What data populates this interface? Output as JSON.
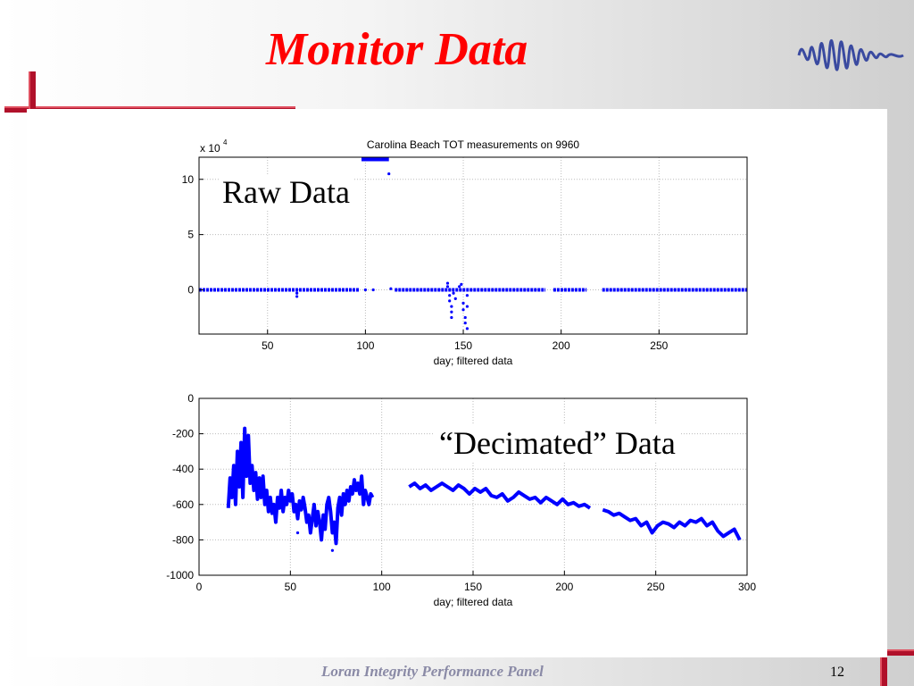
{
  "slide": {
    "title": "Monitor Data",
    "footer": "Loran Integrity Performance Panel",
    "page_number": "12"
  },
  "colors": {
    "title": "#ff0000",
    "data": "#0000ff",
    "crossbar": "#b0102a",
    "footer": "#8a8aa6"
  },
  "icons": [
    "crossbar-top-left-icon",
    "crossbar-bottom-right-icon",
    "waveform-logo-icon"
  ],
  "chart_data": [
    {
      "type": "scatter",
      "title": "Carolina Beach TOT measurements on 9960",
      "xlabel": "day; filtered data",
      "ylabel": "",
      "y_exponent_label": "x 10",
      "y_exponent": "4",
      "overlay_label": "Raw Data",
      "xlim": [
        15,
        295
      ],
      "ylim": [
        -4,
        12
      ],
      "xticks": [
        50,
        100,
        150,
        200,
        250
      ],
      "yticks": [
        0,
        5,
        10
      ],
      "grid": true,
      "segments": [
        {
          "x_start": 15,
          "x_end": 97,
          "y": 0
        },
        {
          "x_start": 115,
          "x_end": 192,
          "y": 0
        },
        {
          "x_start": 196,
          "x_end": 213,
          "y": 0
        },
        {
          "x_start": 221,
          "x_end": 295,
          "y": 0
        }
      ],
      "top_line": {
        "x_start": 98,
        "x_end": 112,
        "y": 11.8
      },
      "outliers": [
        [
          65,
          -0.3
        ],
        [
          65,
          -0.6
        ],
        [
          100,
          0
        ],
        [
          104,
          0
        ],
        [
          112,
          10.5
        ],
        [
          113,
          0.1
        ],
        [
          142,
          0.6
        ],
        [
          142,
          0.3
        ],
        [
          143,
          -0.5
        ],
        [
          143,
          -1.0
        ],
        [
          144,
          -1.5
        ],
        [
          144,
          -2.0
        ],
        [
          144,
          -2.5
        ],
        [
          145,
          -0.3
        ],
        [
          146,
          -0.8
        ],
        [
          150,
          -1.2
        ],
        [
          150,
          -1.8
        ],
        [
          151,
          -2.5
        ],
        [
          151,
          -3.0
        ],
        [
          152,
          -0.5
        ],
        [
          152,
          -1.5
        ],
        [
          152,
          -3.5
        ],
        [
          148,
          0.3
        ],
        [
          149,
          0.5
        ]
      ]
    },
    {
      "type": "line",
      "title": "",
      "xlabel": "day; filtered data",
      "ylabel": "",
      "overlay_label": "“Decimated” Data",
      "xlim": [
        0,
        300
      ],
      "ylim": [
        -1000,
        0
      ],
      "xticks": [
        0,
        50,
        100,
        150,
        200,
        250,
        300
      ],
      "yticks": [
        0,
        -200,
        -400,
        -600,
        -800,
        -1000
      ],
      "grid": true,
      "series": [
        {
          "x": [
            16,
            17,
            18,
            19,
            20,
            21,
            22,
            23,
            24,
            25,
            26,
            27,
            28,
            29,
            30,
            31,
            32,
            33,
            34,
            35,
            36,
            37,
            38,
            39,
            40,
            41,
            42,
            43,
            44,
            45,
            46,
            47,
            48,
            49,
            50,
            51,
            52,
            53,
            54,
            55,
            56,
            57,
            58,
            59,
            60,
            61,
            62,
            63,
            64,
            65,
            66,
            67,
            68,
            69,
            70,
            71,
            72,
            73,
            74,
            75,
            76,
            77,
            78,
            79,
            80,
            81,
            82,
            83,
            84,
            85,
            86,
            87,
            88,
            89,
            90,
            91,
            92,
            93,
            94,
            95
          ],
          "y": [
            -620,
            -450,
            -560,
            -380,
            -600,
            -300,
            -500,
            -250,
            -560,
            -170,
            -440,
            -210,
            -480,
            -380,
            -520,
            -420,
            -570,
            -450,
            -560,
            -440,
            -600,
            -520,
            -640,
            -560,
            -650,
            -600,
            -700,
            -560,
            -620,
            -520,
            -640,
            -560,
            -600,
            -520,
            -580,
            -540,
            -640,
            -600,
            -680,
            -580,
            -630,
            -560,
            -620,
            -700,
            -660,
            -760,
            -680,
            -600,
            -720,
            -640,
            -700,
            -800,
            -660,
            -740,
            -600,
            -560,
            -640,
            -760,
            -700,
            -820,
            -620,
            -560,
            -660,
            -540,
            -600,
            -520,
            -580,
            -500,
            -540,
            -460,
            -520,
            -480,
            -540,
            -440,
            -600,
            -520,
            -560,
            -600,
            -540,
            -560
          ]
        },
        {
          "x": [
            115,
            118,
            121,
            124,
            127,
            130,
            133,
            136,
            139,
            142,
            145,
            148,
            151,
            154,
            157,
            160,
            163,
            166,
            169,
            172,
            175,
            178,
            181,
            184,
            187,
            190,
            193,
            196,
            199,
            202,
            205,
            208,
            211,
            214
          ],
          "y": [
            -500,
            -480,
            -510,
            -490,
            -520,
            -500,
            -480,
            -500,
            -520,
            -490,
            -510,
            -540,
            -510,
            -530,
            -510,
            -550,
            -560,
            -540,
            -580,
            -560,
            -530,
            -550,
            -570,
            -560,
            -590,
            -560,
            -580,
            -600,
            -570,
            -600,
            -590,
            -610,
            -600,
            -620
          ]
        },
        {
          "x": [
            221,
            224,
            227,
            230,
            233,
            236,
            239,
            242,
            245,
            248,
            251,
            254,
            257,
            260,
            263,
            266,
            269,
            272,
            275,
            278,
            281,
            284,
            287,
            290,
            293,
            296
          ],
          "y": [
            -630,
            -640,
            -660,
            -650,
            -670,
            -690,
            -680,
            -720,
            -700,
            -760,
            -720,
            -700,
            -710,
            -730,
            -700,
            -720,
            -690,
            -700,
            -680,
            -720,
            -700,
            -750,
            -780,
            -760,
            -740,
            -800
          ]
        }
      ],
      "outliers": [
        [
          73,
          -860
        ],
        [
          54,
          -760
        ]
      ]
    }
  ]
}
